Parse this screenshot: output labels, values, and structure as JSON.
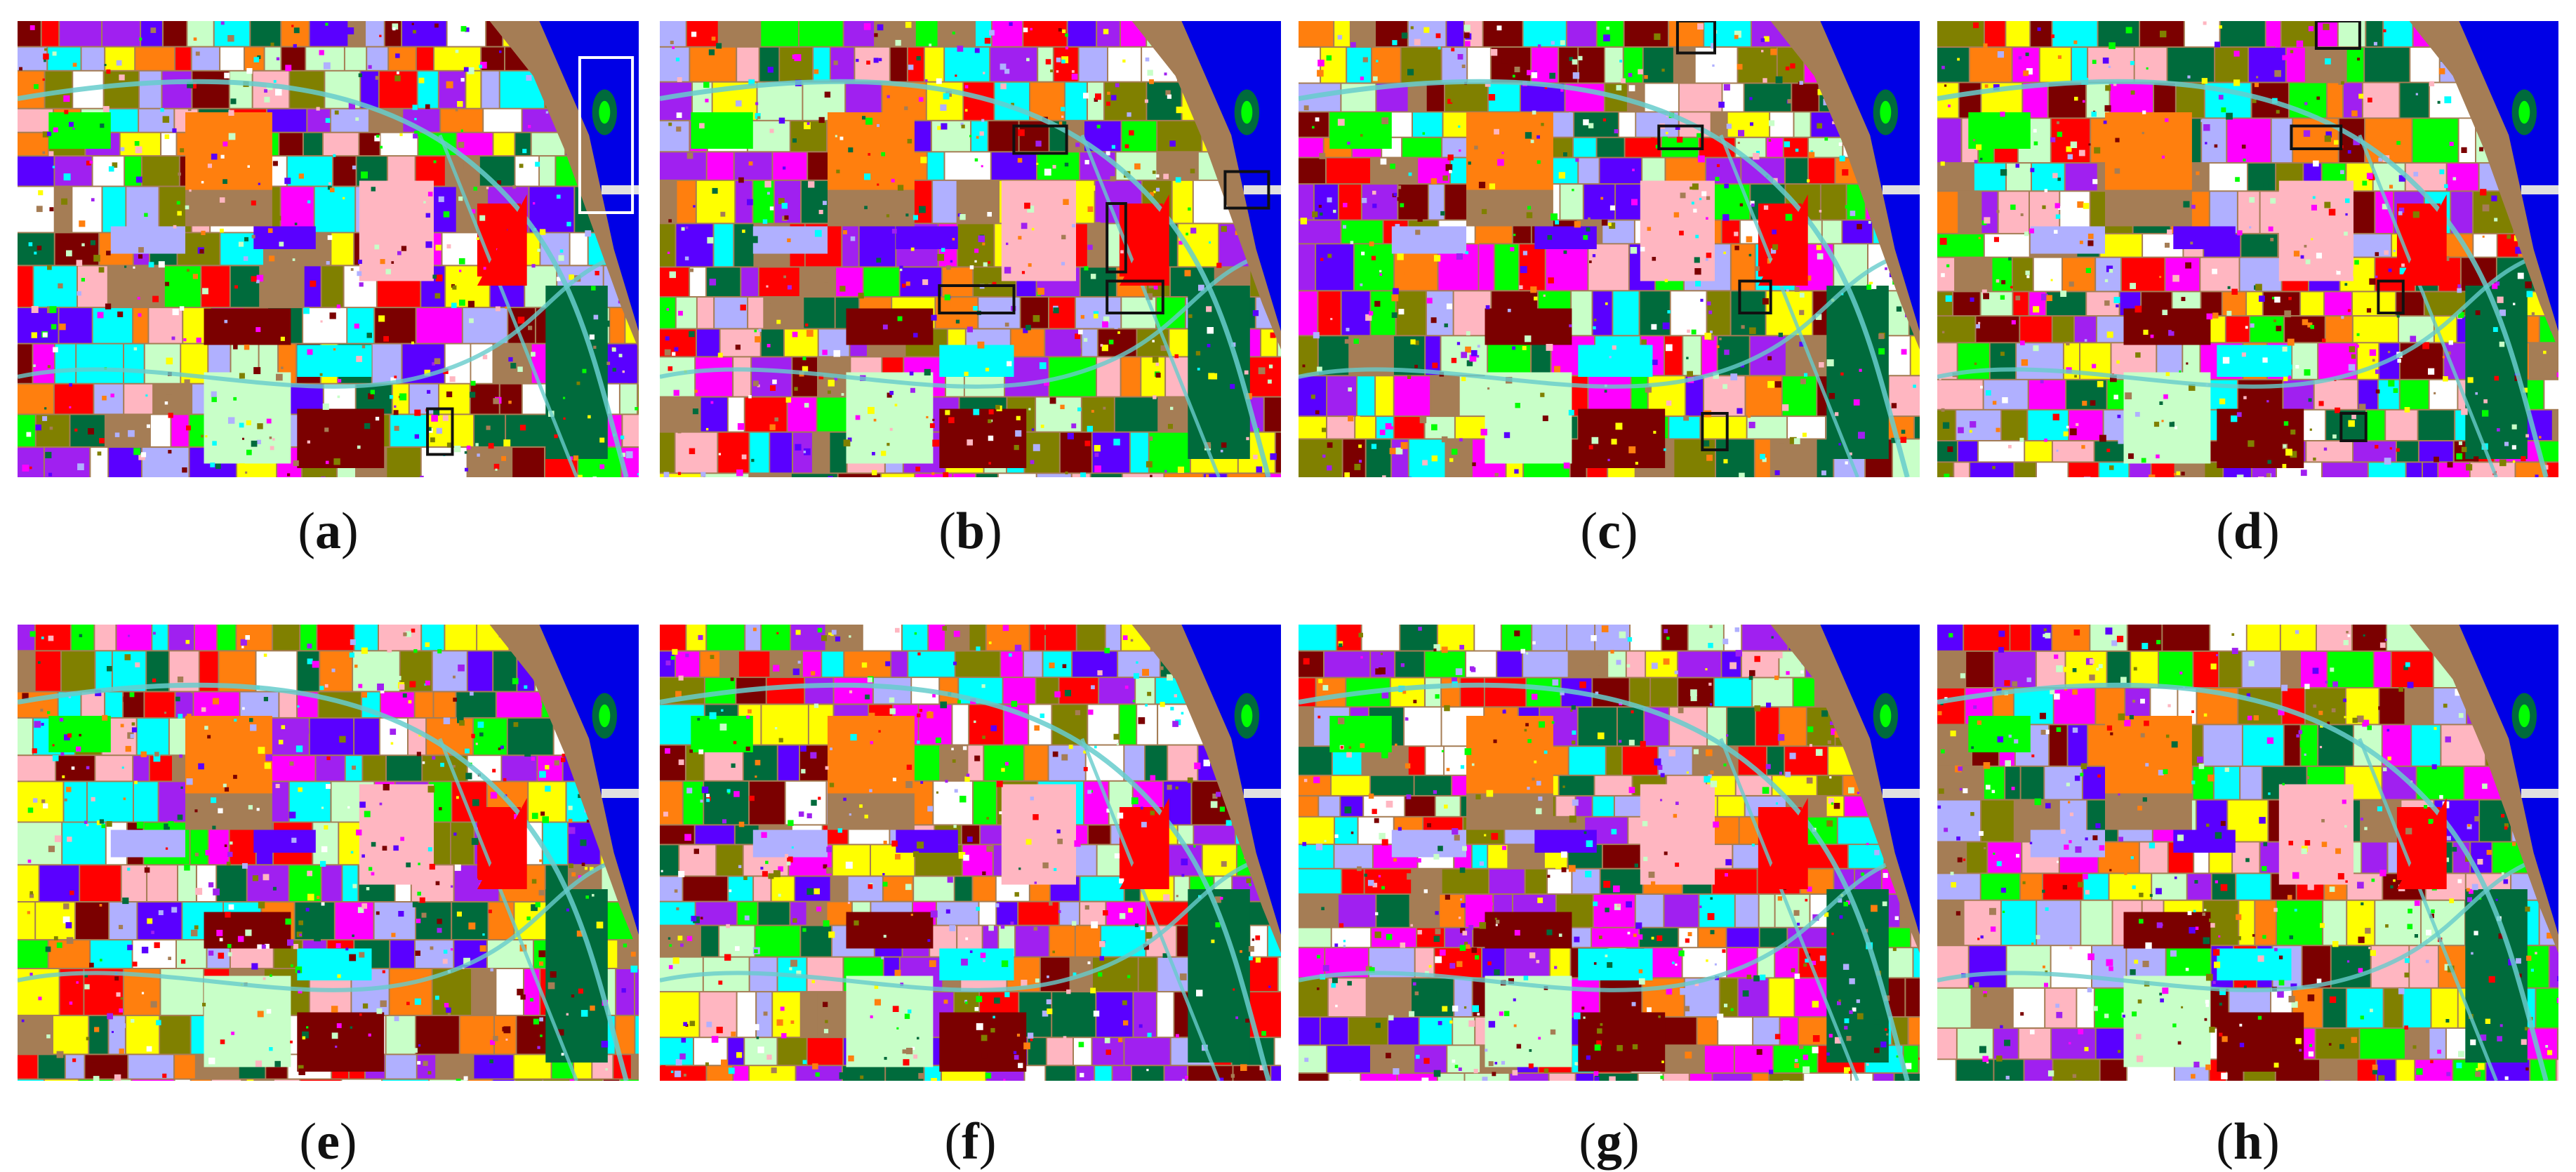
{
  "figure": {
    "panels": [
      {
        "id": "a",
        "label": "a",
        "seed": 11,
        "boxes": [
          {
            "kind": "white",
            "fx": 0.905,
            "fy": 0.08,
            "fw": 0.085,
            "fh": 0.34
          },
          {
            "kind": "black",
            "fx": 0.66,
            "fy": 0.85,
            "fw": 0.04,
            "fh": 0.1
          }
        ]
      },
      {
        "id": "b",
        "label": "b",
        "seed": 23,
        "boxes": [
          {
            "kind": "black",
            "fx": 0.57,
            "fy": 0.23,
            "fw": 0.085,
            "fh": 0.06
          },
          {
            "kind": "black",
            "fx": 0.72,
            "fy": 0.4,
            "fw": 0.03,
            "fh": 0.15
          },
          {
            "kind": "black",
            "fx": 0.91,
            "fy": 0.33,
            "fw": 0.07,
            "fh": 0.08
          },
          {
            "kind": "black",
            "fx": 0.45,
            "fy": 0.58,
            "fw": 0.12,
            "fh": 0.06
          },
          {
            "kind": "black",
            "fx": 0.72,
            "fy": 0.57,
            "fw": 0.09,
            "fh": 0.07
          }
        ]
      },
      {
        "id": "c",
        "label": "c",
        "seed": 37,
        "boxes": [
          {
            "kind": "black",
            "fx": 0.61,
            "fy": 0.0,
            "fw": 0.06,
            "fh": 0.07
          },
          {
            "kind": "black",
            "fx": 0.58,
            "fy": 0.23,
            "fw": 0.07,
            "fh": 0.05
          },
          {
            "kind": "black",
            "fx": 0.71,
            "fy": 0.57,
            "fw": 0.05,
            "fh": 0.07
          },
          {
            "kind": "black",
            "fx": 0.65,
            "fy": 0.86,
            "fw": 0.04,
            "fh": 0.08
          }
        ]
      },
      {
        "id": "d",
        "label": "d",
        "seed": 41,
        "boxes": [
          {
            "kind": "black",
            "fx": 0.61,
            "fy": 0.0,
            "fw": 0.07,
            "fh": 0.06
          },
          {
            "kind": "black",
            "fx": 0.57,
            "fy": 0.23,
            "fw": 0.08,
            "fh": 0.05
          },
          {
            "kind": "black",
            "fx": 0.71,
            "fy": 0.57,
            "fw": 0.04,
            "fh": 0.07
          },
          {
            "kind": "black",
            "fx": 0.65,
            "fy": 0.86,
            "fw": 0.04,
            "fh": 0.06
          }
        ]
      },
      {
        "id": "e",
        "label": "e",
        "seed": 53,
        "boxes": []
      },
      {
        "id": "f",
        "label": "f",
        "seed": 67,
        "boxes": []
      },
      {
        "id": "g",
        "label": "g",
        "seed": 71,
        "boxes": []
      },
      {
        "id": "h",
        "label": "h",
        "seed": 89,
        "boxes": []
      }
    ],
    "palette": {
      "water": "#0000e6",
      "soil": "#a57d55",
      "classes": [
        "#ffff00",
        "#a020f0",
        "#ff7f0e",
        "#00ff00",
        "#a57d55",
        "#7b0000",
        "#00ffff",
        "#ffb6c1",
        "#c8ffc8",
        "#b0b0ff",
        "#006b3c",
        "#ff0000",
        "#5a00ff",
        "#ff00ff",
        "#808000",
        "#ffffff"
      ],
      "road": "#66cccc",
      "box_black": "#111111",
      "box_white": "#ffffff"
    }
  }
}
